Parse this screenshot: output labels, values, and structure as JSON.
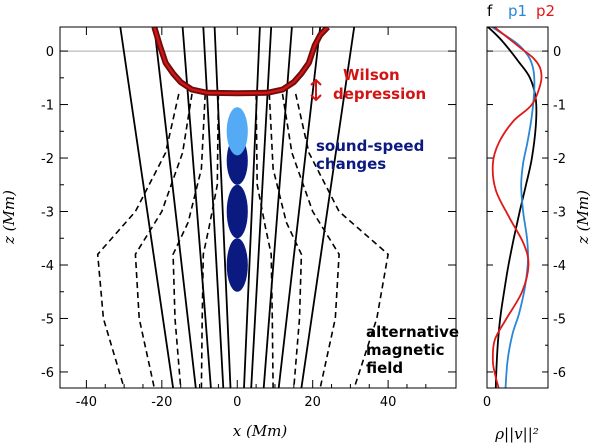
{
  "chart_data": [
    {
      "type": "line",
      "panel": "main",
      "xlabel": "x (Mm)",
      "ylabel": "z (Mm)",
      "xlim": [
        -47,
        58
      ],
      "ylim": [
        -6.3,
        0.45
      ],
      "xticks": [
        -40,
        -20,
        0,
        20,
        40
      ],
      "yticks": [
        0,
        -1,
        -2,
        -3,
        -4,
        -5,
        -6
      ],
      "reference_line_z": 0,
      "surface": {
        "label_line1": "Wilson",
        "label_line2": "depression",
        "color": "#d21414",
        "outline_color": "#6b0d0d",
        "curve": [
          [
            -22,
            0.45
          ],
          [
            -20.5,
            0.1
          ],
          [
            -19,
            -0.22
          ],
          [
            -17,
            -0.42
          ],
          [
            -15,
            -0.58
          ],
          [
            -12,
            -0.72
          ],
          [
            -8,
            -0.78
          ],
          [
            0,
            -0.79
          ],
          [
            8,
            -0.78
          ],
          [
            12,
            -0.72
          ],
          [
            15,
            -0.58
          ],
          [
            17,
            -0.42
          ],
          [
            19,
            -0.22
          ],
          [
            20.5,
            0.1
          ],
          [
            22,
            0.3
          ],
          [
            24,
            0.45
          ]
        ]
      },
      "sound_speed": {
        "label_line1": "sound-speed",
        "label_line2": "changes",
        "color_positive": "#55aaf5",
        "color_negative": "#0a1a80",
        "blobs": [
          {
            "x": 0,
            "z": -1.5,
            "rx": 2.8,
            "rz": 0.45,
            "sign": "positive"
          },
          {
            "x": 0,
            "z": -2.05,
            "rx": 2.8,
            "rz": 0.45,
            "sign": "negative"
          },
          {
            "x": 0,
            "z": -3.0,
            "rx": 2.8,
            "rz": 0.5,
            "sign": "negative"
          },
          {
            "x": 0,
            "z": -4.0,
            "rx": 2.8,
            "rz": 0.5,
            "sign": "negative"
          }
        ]
      },
      "field_lines": [
        {
          "name": "solid field line 1",
          "style": "solid",
          "points": [
            [
              -31,
              0.45
            ],
            [
              -17,
              -6.3
            ]
          ]
        },
        {
          "name": "solid field line 2",
          "style": "solid",
          "points": [
            [
              -22,
              0.45
            ],
            [
              -11,
              -6.3
            ]
          ]
        },
        {
          "name": "solid field line 3",
          "style": "solid",
          "points": [
            [
              -14.5,
              0.45
            ],
            [
              -7,
              -6.3
            ]
          ]
        },
        {
          "name": "solid field line 4",
          "style": "solid",
          "points": [
            [
              -9,
              0.45
            ],
            [
              -3.7,
              -6.3
            ]
          ]
        },
        {
          "name": "solid field line 5",
          "style": "solid",
          "points": [
            [
              -6,
              0.45
            ],
            [
              -1.8,
              -6.3
            ]
          ]
        },
        {
          "name": "solid field line 6",
          "style": "solid",
          "points": [
            [
              6,
              0.45
            ],
            [
              1.8,
              -6.3
            ]
          ]
        },
        {
          "name": "solid field line 7",
          "style": "solid",
          "points": [
            [
              9,
              0.45
            ],
            [
              3.7,
              -6.3
            ]
          ]
        },
        {
          "name": "solid field line 8",
          "style": "solid",
          "points": [
            [
              14.5,
              0.45
            ],
            [
              7,
              -6.3
            ]
          ]
        },
        {
          "name": "solid field line 9",
          "style": "solid",
          "points": [
            [
              22,
              0.45
            ],
            [
              11,
              -6.3
            ]
          ]
        },
        {
          "name": "solid field line 10",
          "style": "solid",
          "points": [
            [
              31,
              0.45
            ],
            [
              17,
              -6.3
            ]
          ]
        },
        {
          "name": "dashed field line 1",
          "style": "dashed",
          "points": [
            [
              -15.5,
              -0.8
            ],
            [
              -19,
              -1.9
            ],
            [
              -27,
              -3.0
            ],
            [
              -37,
              -3.8
            ],
            [
              -35.5,
              -5.0
            ],
            [
              -30,
              -6.3
            ]
          ]
        },
        {
          "name": "dashed field line 2",
          "style": "dashed",
          "points": [
            [
              -12,
              -0.8
            ],
            [
              -14.5,
              -1.9
            ],
            [
              -20,
              -3.0
            ],
            [
              -27,
              -3.8
            ],
            [
              -26,
              -5.0
            ],
            [
              -22,
              -6.3
            ]
          ]
        },
        {
          "name": "dashed field line 3",
          "style": "dashed",
          "points": [
            [
              -8.5,
              -0.8
            ],
            [
              -9.5,
              -2.2
            ],
            [
              -13,
              -3.2
            ],
            [
              -17,
              -3.8
            ],
            [
              -16.5,
              -5.0
            ],
            [
              -15,
              -6.3
            ]
          ]
        },
        {
          "name": "dashed field line 4",
          "style": "dashed",
          "points": [
            [
              -5,
              -0.8
            ],
            [
              -5.3,
              -2.5
            ],
            [
              -7.5,
              -3.3
            ],
            [
              -9,
              -3.8
            ],
            [
              -9.3,
              -5.0
            ],
            [
              -9.5,
              -6.3
            ]
          ]
        },
        {
          "name": "dashed field line 5",
          "style": "dashed",
          "points": [
            [
              5,
              -0.8
            ],
            [
              5.3,
              -2.5
            ],
            [
              7.5,
              -3.3
            ],
            [
              9,
              -3.8
            ],
            [
              9.3,
              -5.0
            ],
            [
              9.5,
              -6.3
            ]
          ]
        },
        {
          "name": "dashed field line 6",
          "style": "dashed",
          "points": [
            [
              8.5,
              -0.8
            ],
            [
              9.5,
              -2.2
            ],
            [
              13,
              -3.2
            ],
            [
              17,
              -3.8
            ],
            [
              16.5,
              -5.0
            ],
            [
              15,
              -6.3
            ]
          ]
        },
        {
          "name": "dashed field line 7",
          "style": "dashed",
          "points": [
            [
              12,
              -0.8
            ],
            [
              14.5,
              -1.9
            ],
            [
              20,
              -3.0
            ],
            [
              27,
              -3.8
            ],
            [
              26,
              -5.0
            ],
            [
              22,
              -6.3
            ]
          ]
        },
        {
          "name": "dashed field line 8",
          "style": "dashed",
          "points": [
            [
              15.5,
              -0.8
            ],
            [
              19,
              -1.9
            ],
            [
              27,
              -3.0
            ],
            [
              40,
              -3.8
            ],
            [
              37,
              -5.0
            ],
            [
              31,
              -6.3
            ]
          ]
        }
      ],
      "field_label": [
        "alternative",
        "magnetic",
        "field"
      ]
    },
    {
      "type": "line",
      "panel": "side",
      "xlabel": "ρ||v||²",
      "ylabel": "z (Mm)",
      "xlim": [
        0,
        1.25
      ],
      "ylim": [
        -6.3,
        0.45
      ],
      "xticks": [
        0
      ],
      "yticks": [
        0,
        -1,
        -2,
        -3,
        -4,
        -5,
        -6
      ],
      "series": [
        {
          "name": "f",
          "color": "#000000",
          "points": [
            [
              0.02,
              0.45
            ],
            [
              0.3,
              0.2
            ],
            [
              0.65,
              -0.2
            ],
            [
              0.88,
              -0.5
            ],
            [
              1.0,
              -0.9
            ],
            [
              1.0,
              -1.4
            ],
            [
              0.92,
              -2.0
            ],
            [
              0.8,
              -2.5
            ],
            [
              0.67,
              -3.0
            ],
            [
              0.55,
              -3.5
            ],
            [
              0.44,
              -4.0
            ],
            [
              0.35,
              -4.5
            ],
            [
              0.27,
              -5.0
            ],
            [
              0.22,
              -5.5
            ],
            [
              0.19,
              -6.0
            ],
            [
              0.18,
              -6.3
            ]
          ]
        },
        {
          "name": "p1",
          "color": "#2a86d6",
          "points": [
            [
              0.1,
              0.45
            ],
            [
              0.6,
              0.15
            ],
            [
              0.85,
              -0.1
            ],
            [
              0.95,
              -0.35
            ],
            [
              0.97,
              -0.7
            ],
            [
              0.92,
              -1.2
            ],
            [
              0.83,
              -1.7
            ],
            [
              0.74,
              -2.1
            ],
            [
              0.7,
              -2.5
            ],
            [
              0.74,
              -3.0
            ],
            [
              0.82,
              -3.5
            ],
            [
              0.84,
              -3.9
            ],
            [
              0.78,
              -4.4
            ],
            [
              0.66,
              -4.9
            ],
            [
              0.52,
              -5.3
            ],
            [
              0.42,
              -5.8
            ],
            [
              0.38,
              -6.3
            ]
          ]
        },
        {
          "name": "p2",
          "color": "#e01818",
          "points": [
            [
              0.15,
              0.45
            ],
            [
              0.7,
              0.05
            ],
            [
              0.97,
              -0.15
            ],
            [
              1.1,
              -0.35
            ],
            [
              1.1,
              -0.6
            ],
            [
              0.92,
              -1.0
            ],
            [
              0.55,
              -1.3
            ],
            [
              0.25,
              -1.7
            ],
            [
              0.12,
              -2.1
            ],
            [
              0.18,
              -2.6
            ],
            [
              0.45,
              -3.1
            ],
            [
              0.75,
              -3.6
            ],
            [
              0.85,
              -4.0
            ],
            [
              0.72,
              -4.5
            ],
            [
              0.4,
              -5.0
            ],
            [
              0.16,
              -5.4
            ],
            [
              0.12,
              -5.8
            ],
            [
              0.18,
              -6.1
            ],
            [
              0.24,
              -6.3
            ]
          ]
        }
      ],
      "legend": [
        {
          "label": "f",
          "color": "#000000"
        },
        {
          "label": "p1",
          "color": "#2a86d6"
        },
        {
          "label": "p2",
          "color": "#e01818"
        }
      ]
    }
  ]
}
